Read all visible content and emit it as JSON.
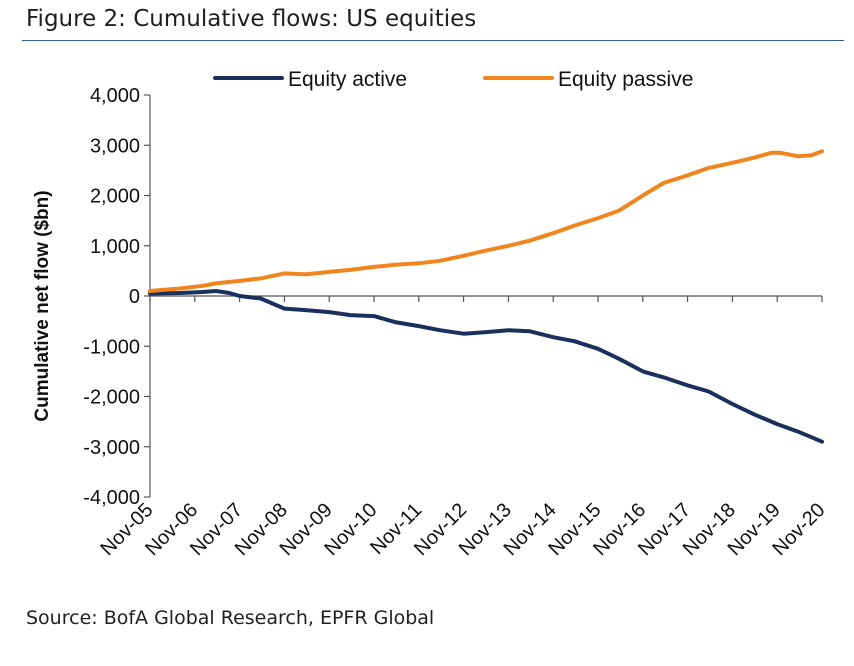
{
  "figure": {
    "title": "Figure 2: Cumulative flows: US equities",
    "source": "Source: BofA Global Research, EPFR Global"
  },
  "chart_data": {
    "type": "line",
    "title": "Figure 2: Cumulative flows: US equities",
    "xlabel": "",
    "ylabel": "Cumulative net flow ($bn)",
    "ylim": [
      -4000,
      4000
    ],
    "yticks": [
      4000,
      3000,
      2000,
      1000,
      0,
      -1000,
      -2000,
      -3000,
      -4000
    ],
    "ytick_labels": [
      "4,000",
      "3,000",
      "2,000",
      "1,000",
      "0",
      "-1,000",
      "-2,000",
      "-3,000",
      "-4,000"
    ],
    "xlim": [
      2005.83,
      2020.83
    ],
    "categories": [
      "Nov-05",
      "Nov-06",
      "Nov-07",
      "Nov-08",
      "Nov-09",
      "Nov-10",
      "Nov-11",
      "Nov-12",
      "Nov-13",
      "Nov-14",
      "Nov-15",
      "Nov-16",
      "Nov-17",
      "Nov-18",
      "Nov-19",
      "Nov-20"
    ],
    "legend_position": "top",
    "grid": false,
    "series": [
      {
        "name": "Equity active",
        "color": "#1b2f5c",
        "x": [
          2005.83,
          2006.5,
          2007.0,
          2007.3,
          2007.6,
          2007.83,
          2008.3,
          2008.83,
          2009.3,
          2009.83,
          2010.3,
          2010.83,
          2011.3,
          2011.83,
          2012.3,
          2012.83,
          2013.3,
          2013.83,
          2014.3,
          2014.83,
          2015.3,
          2015.83,
          2016.3,
          2016.83,
          2017.3,
          2017.83,
          2018.3,
          2018.83,
          2019.3,
          2019.83,
          2020.3,
          2020.83
        ],
        "values": [
          50,
          60,
          80,
          100,
          60,
          0,
          -50,
          -250,
          -280,
          -320,
          -380,
          -400,
          -520,
          -600,
          -680,
          -750,
          -720,
          -680,
          -700,
          -820,
          -900,
          -1050,
          -1250,
          -1500,
          -1620,
          -1780,
          -1900,
          -2150,
          -2350,
          -2550,
          -2700,
          -2900
        ]
      },
      {
        "name": "Equity passive",
        "color": "#f0851e",
        "x": [
          2005.83,
          2006.5,
          2007.0,
          2007.3,
          2007.83,
          2008.3,
          2008.83,
          2009.3,
          2009.83,
          2010.3,
          2010.83,
          2011.3,
          2011.83,
          2012.3,
          2012.83,
          2013.3,
          2013.83,
          2014.3,
          2014.83,
          2015.3,
          2015.83,
          2016.3,
          2016.83,
          2017.3,
          2017.83,
          2018.3,
          2018.83,
          2019.3,
          2019.7,
          2019.9,
          2020.3,
          2020.6,
          2020.83
        ],
        "values": [
          100,
          150,
          200,
          250,
          300,
          350,
          450,
          430,
          480,
          520,
          580,
          620,
          650,
          700,
          800,
          900,
          1000,
          1100,
          1250,
          1400,
          1550,
          1700,
          2000,
          2250,
          2400,
          2550,
          2650,
          2750,
          2850,
          2850,
          2780,
          2800,
          2880
        ]
      }
    ]
  }
}
